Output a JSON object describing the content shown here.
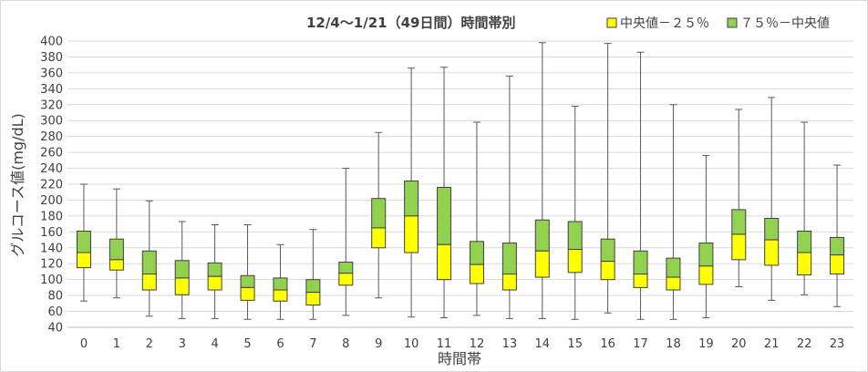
{
  "chart_data": {
    "type": "box",
    "title": "12/4～1/21（49日間）時間帯別",
    "xlabel": "時間帯",
    "ylabel": "グルコース値(mg/dL)",
    "ylim": [
      40,
      400
    ],
    "y_ticks": [
      40,
      60,
      80,
      100,
      120,
      140,
      160,
      180,
      200,
      220,
      240,
      260,
      280,
      300,
      320,
      340,
      360,
      380,
      400
    ],
    "grid": true,
    "legend_position": "top-right",
    "categories": [
      "0",
      "1",
      "2",
      "3",
      "4",
      "5",
      "6",
      "7",
      "8",
      "9",
      "10",
      "11",
      "12",
      "13",
      "14",
      "15",
      "16",
      "17",
      "18",
      "19",
      "20",
      "21",
      "22",
      "23"
    ],
    "series": [
      {
        "name": "中央値－２５％",
        "color": "#ffff00"
      },
      {
        "name": "７５％－中央値",
        "color": "#92d050"
      }
    ],
    "boxes": [
      {
        "min": 73,
        "q1": 115,
        "median": 134,
        "q3": 161,
        "max": 220
      },
      {
        "min": 77,
        "q1": 112,
        "median": 125,
        "q3": 151,
        "max": 214
      },
      {
        "min": 54,
        "q1": 87,
        "median": 107,
        "q3": 136,
        "max": 199
      },
      {
        "min": 51,
        "q1": 81,
        "median": 102,
        "q3": 124,
        "max": 173
      },
      {
        "min": 51,
        "q1": 87,
        "median": 104,
        "q3": 121,
        "max": 169
      },
      {
        "min": 50,
        "q1": 74,
        "median": 90,
        "q3": 105,
        "max": 169
      },
      {
        "min": 50,
        "q1": 73,
        "median": 87,
        "q3": 102,
        "max": 144
      },
      {
        "min": 50,
        "q1": 68,
        "median": 84,
        "q3": 100,
        "max": 163
      },
      {
        "min": 55,
        "q1": 93,
        "median": 108,
        "q3": 122,
        "max": 240
      },
      {
        "min": 77,
        "q1": 140,
        "median": 165,
        "q3": 202,
        "max": 285
      },
      {
        "min": 53,
        "q1": 134,
        "median": 180,
        "q3": 224,
        "max": 366
      },
      {
        "min": 52,
        "q1": 100,
        "median": 144,
        "q3": 216,
        "max": 367
      },
      {
        "min": 55,
        "q1": 95,
        "median": 119,
        "q3": 148,
        "max": 298
      },
      {
        "min": 51,
        "q1": 87,
        "median": 107,
        "q3": 146,
        "max": 356
      },
      {
        "min": 51,
        "q1": 103,
        "median": 136,
        "q3": 175,
        "max": 398
      },
      {
        "min": 50,
        "q1": 109,
        "median": 138,
        "q3": 173,
        "max": 318
      },
      {
        "min": 58,
        "q1": 100,
        "median": 123,
        "q3": 151,
        "max": 397
      },
      {
        "min": 50,
        "q1": 90,
        "median": 107,
        "q3": 136,
        "max": 386
      },
      {
        "min": 50,
        "q1": 87,
        "median": 103,
        "q3": 127,
        "max": 320
      },
      {
        "min": 52,
        "q1": 94,
        "median": 117,
        "q3": 146,
        "max": 256
      },
      {
        "min": 91,
        "q1": 125,
        "median": 157,
        "q3": 188,
        "max": 314
      },
      {
        "min": 74,
        "q1": 118,
        "median": 150,
        "q3": 177,
        "max": 329
      },
      {
        "min": 81,
        "q1": 106,
        "median": 134,
        "q3": 161,
        "max": 298
      },
      {
        "min": 66,
        "q1": 107,
        "median": 131,
        "q3": 153,
        "max": 244
      }
    ]
  }
}
